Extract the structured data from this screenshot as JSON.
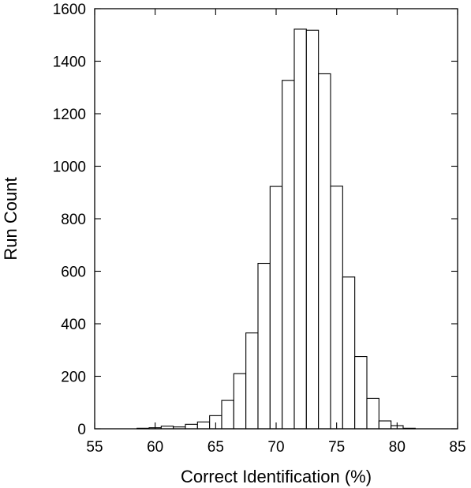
{
  "chart_data": {
    "type": "bar",
    "subtype": "histogram",
    "title": "",
    "xlabel": "Correct Identification (%)",
    "ylabel": "Run Count",
    "xlim": [
      55,
      85
    ],
    "ylim": [
      0,
      1600
    ],
    "xticks": [
      55,
      60,
      65,
      70,
      75,
      80,
      85
    ],
    "yticks": [
      0,
      200,
      400,
      600,
      800,
      1000,
      1200,
      1400,
      1600
    ],
    "bin_width": 1,
    "bin_centers": [
      59,
      60,
      61,
      62,
      63,
      64,
      65,
      66,
      67,
      68,
      69,
      70,
      71,
      72,
      73,
      74,
      75,
      76,
      77,
      78,
      79,
      80,
      81
    ],
    "values": [
      2,
      4,
      10,
      7,
      17,
      26,
      50,
      108,
      210,
      365,
      630,
      923,
      1327,
      1522,
      1518,
      1352,
      924,
      578,
      275,
      116,
      30,
      12,
      2
    ],
    "grid": false,
    "bar_fill": "#ffffff",
    "bar_stroke": "#000000"
  }
}
